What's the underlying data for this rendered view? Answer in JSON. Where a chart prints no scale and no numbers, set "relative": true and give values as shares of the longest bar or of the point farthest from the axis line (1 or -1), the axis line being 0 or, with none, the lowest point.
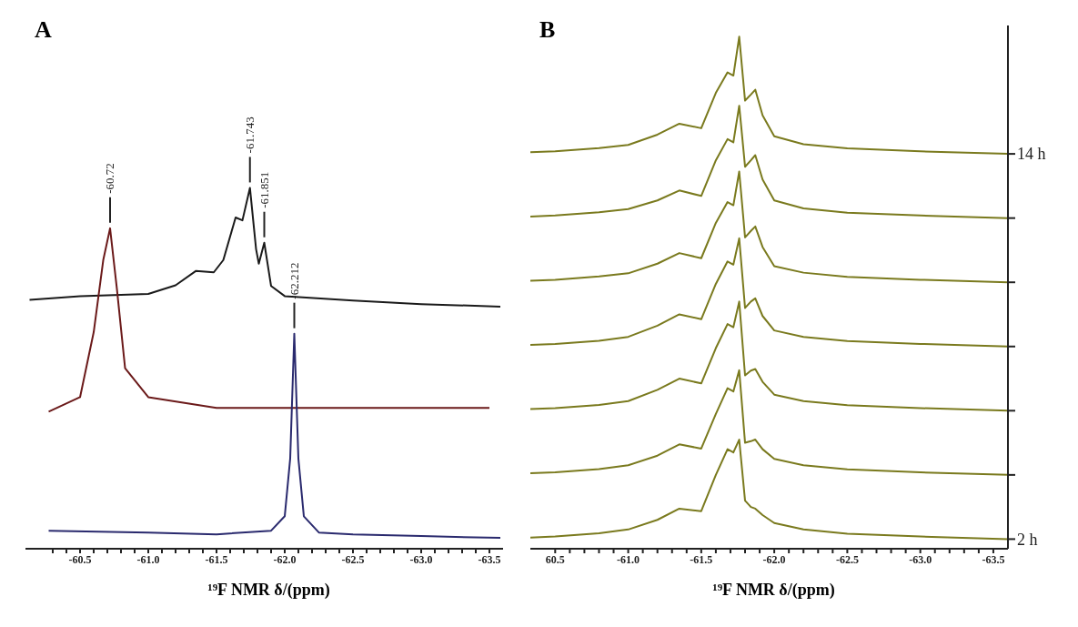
{
  "chart_data": [
    {
      "type": "line",
      "title": "A",
      "xlabel": "¹⁹F NMR δ/(ppm)",
      "relative": true,
      "xlim": [
        -60.1,
        -63.6
      ],
      "xticks": [
        {
          "value": -60.3,
          "label": null
        },
        {
          "value": -60.4,
          "label": null
        },
        -60.5,
        {
          "value": -60.6,
          "label": null
        },
        {
          "value": -60.7,
          "label": null
        },
        {
          "value": -60.8,
          "label": null
        },
        {
          "value": -60.9,
          "label": null
        },
        {
          "value": -61.0,
          "label": "-61.0"
        },
        {
          "value": -61.1,
          "label": null
        },
        {
          "value": -61.2,
          "label": null
        },
        {
          "value": -61.3,
          "label": null
        },
        {
          "value": -61.4,
          "label": null
        },
        -61.5,
        {
          "value": -61.6,
          "label": null
        },
        {
          "value": -61.7,
          "label": null
        },
        {
          "value": -61.8,
          "label": null
        },
        {
          "value": -61.9,
          "label": null
        },
        {
          "value": -62.0,
          "label": "-62.0"
        },
        {
          "value": -62.1,
          "label": null
        },
        {
          "value": -62.2,
          "label": null
        },
        {
          "value": -62.3,
          "label": null
        },
        {
          "value": -62.4,
          "label": null
        },
        -62.5,
        {
          "value": -62.6,
          "label": null
        },
        {
          "value": -62.7,
          "label": null
        },
        {
          "value": -62.8,
          "label": null
        },
        {
          "value": -62.9,
          "label": null
        },
        {
          "value": -63.0,
          "label": "-63.0"
        },
        {
          "value": -63.1,
          "label": null
        },
        {
          "value": -63.2,
          "label": null
        },
        {
          "value": -63.3,
          "label": null
        },
        {
          "value": -63.4,
          "label": null
        },
        -63.5
      ],
      "marker": "none",
      "line_style": "solid",
      "series": [
        {
          "color": "#1a1a1a",
          "x": [
            -60.13,
            -60.5,
            -61.0,
            -61.2,
            -61.35,
            -61.48,
            -61.55,
            -61.64,
            -61.69,
            -61.745,
            -61.79,
            -61.81,
            -61.85,
            -61.9,
            -62.0,
            -62.5,
            -63.0,
            -63.58
          ],
          "values": [
            0.69,
            0.7,
            0.706,
            0.73,
            0.77,
            0.766,
            0.8,
            0.918,
            0.91,
            1.0,
            0.83,
            0.79,
            0.848,
            0.728,
            0.7,
            0.688,
            0.678,
            0.671
          ]
        },
        {
          "color": "#6b1a1a",
          "x": [
            -60.27,
            -60.5,
            -60.6,
            -60.67,
            -60.72,
            -60.77,
            -60.83,
            -61.0,
            -61.5,
            -62.0,
            -62.5,
            -63.0,
            -63.5
          ],
          "values": [
            0.38,
            0.42,
            0.6,
            0.8,
            0.888,
            0.72,
            0.5,
            0.42,
            0.39,
            0.39,
            0.39,
            0.39,
            0.39
          ]
        },
        {
          "color": "#2a2a6e",
          "x": [
            -60.27,
            -61.0,
            -61.5,
            -61.9,
            -62.0,
            -62.04,
            -62.07,
            -62.1,
            -62.14,
            -62.25,
            -62.5,
            -63.0,
            -63.58
          ],
          "values": [
            0.05,
            0.045,
            0.04,
            0.05,
            0.09,
            0.25,
            0.596,
            0.25,
            0.09,
            0.045,
            0.04,
            0.035,
            0.03
          ]
        }
      ],
      "annotations": [
        {
          "text": "-60.72",
          "x": -60.72,
          "y": 0.888
        },
        {
          "text": "-61.743",
          "x": -61.745,
          "y": 1.0
        },
        {
          "text": "-61.851",
          "x": -61.85,
          "y": 0.848
        },
        {
          "text": "-62.212",
          "x": -62.07,
          "y": 0.596
        }
      ]
    },
    {
      "type": "line",
      "title": "B",
      "xlabel": "¹⁹F NMR δ/(ppm)",
      "xlim": [
        -60.33,
        -63.6
      ],
      "xticks": [
        {
          "value": -60.5,
          "label": "60.5"
        },
        {
          "value": -60.6,
          "label": null
        },
        {
          "value": -60.7,
          "label": null
        },
        {
          "value": -60.8,
          "label": null
        },
        {
          "value": -60.9,
          "label": null
        },
        {
          "value": -61.0,
          "label": "-61.0"
        },
        {
          "value": -61.1,
          "label": null
        },
        {
          "value": -61.2,
          "label": null
        },
        {
          "value": -61.3,
          "label": null
        },
        {
          "value": -61.4,
          "label": null
        },
        -61.5,
        {
          "value": -61.6,
          "label": null
        },
        {
          "value": -61.7,
          "label": null
        },
        {
          "value": -61.8,
          "label": null
        },
        {
          "value": -61.9,
          "label": null
        },
        {
          "value": -62.0,
          "label": "-62.0"
        },
        {
          "value": -62.1,
          "label": null
        },
        {
          "value": -62.2,
          "label": null
        },
        {
          "value": -62.3,
          "label": null
        },
        {
          "value": -62.4,
          "label": null
        },
        -62.5,
        {
          "value": -62.6,
          "label": null
        },
        {
          "value": -62.7,
          "label": null
        },
        {
          "value": -62.8,
          "label": null
        },
        {
          "value": -62.9,
          "label": null
        },
        {
          "value": -63.0,
          "label": "-63.0"
        },
        {
          "value": -63.1,
          "label": null
        },
        {
          "value": -63.2,
          "label": null
        },
        {
          "value": -63.3,
          "label": null
        },
        {
          "value": -63.4,
          "label": null
        },
        -63.5
      ],
      "ylim": [
        1.7,
        18
      ],
      "yticks": [
        {
          "value": 2,
          "label": "2 h"
        },
        {
          "value": 4,
          "label": null
        },
        {
          "value": 6,
          "label": null
        },
        {
          "value": 8,
          "label": null
        },
        {
          "value": 10,
          "label": null
        },
        {
          "value": 12,
          "label": null
        },
        {
          "value": 14,
          "label": "14 h"
        }
      ],
      "marker": "none",
      "line_style": "solid",
      "x": [
        -60.33,
        -60.5,
        -60.8,
        -61.0,
        -61.2,
        -61.35,
        -61.5,
        -61.6,
        -61.68,
        -61.72,
        -61.76,
        -61.8,
        -61.84,
        -61.87,
        -61.92,
        -62.0,
        -62.2,
        -62.5,
        -63.0,
        -63.6
      ],
      "series": [
        {
          "color": "#7a7a1e",
          "values": [
            14.05,
            14.08,
            14.18,
            14.28,
            14.6,
            14.94,
            14.8,
            15.9,
            16.54,
            16.44,
            17.65,
            15.66,
            15.85,
            16.0,
            15.2,
            14.55,
            14.3,
            14.17,
            14.08,
            14.0
          ]
        },
        {
          "color": "#7a7a1e",
          "values": [
            12.05,
            12.08,
            12.18,
            12.28,
            12.55,
            12.86,
            12.69,
            13.8,
            14.46,
            14.36,
            15.5,
            13.6,
            13.8,
            13.96,
            13.2,
            12.55,
            12.3,
            12.17,
            12.08,
            12.0
          ]
        },
        {
          "color": "#7a7a1e",
          "values": [
            10.05,
            10.08,
            10.18,
            10.28,
            10.58,
            10.91,
            10.75,
            11.85,
            12.5,
            12.4,
            13.45,
            11.4,
            11.6,
            11.74,
            11.1,
            10.5,
            10.3,
            10.17,
            10.08,
            10.0
          ]
        },
        {
          "color": "#7a7a1e",
          "values": [
            8.05,
            8.08,
            8.18,
            8.3,
            8.65,
            9.0,
            8.85,
            9.95,
            10.65,
            10.55,
            11.37,
            9.2,
            9.4,
            9.5,
            8.95,
            8.5,
            8.3,
            8.17,
            8.08,
            8.0
          ]
        },
        {
          "color": "#7a7a1e",
          "values": [
            6.05,
            6.08,
            6.18,
            6.3,
            6.65,
            7.0,
            6.85,
            7.95,
            8.7,
            8.6,
            9.4,
            7.1,
            7.25,
            7.3,
            6.9,
            6.5,
            6.3,
            6.17,
            6.08,
            6.0
          ]
        },
        {
          "color": "#7a7a1e",
          "values": [
            4.05,
            4.08,
            4.18,
            4.3,
            4.6,
            4.95,
            4.82,
            5.9,
            6.7,
            6.6,
            7.26,
            5.0,
            5.05,
            5.1,
            4.8,
            4.5,
            4.3,
            4.17,
            4.08,
            4.0
          ]
        },
        {
          "color": "#7a7a1e",
          "values": [
            2.05,
            2.08,
            2.18,
            2.3,
            2.6,
            2.95,
            2.87,
            4.0,
            4.8,
            4.7,
            5.1,
            3.2,
            3.0,
            2.95,
            2.75,
            2.5,
            2.3,
            2.17,
            2.08,
            2.0
          ]
        }
      ]
    }
  ]
}
